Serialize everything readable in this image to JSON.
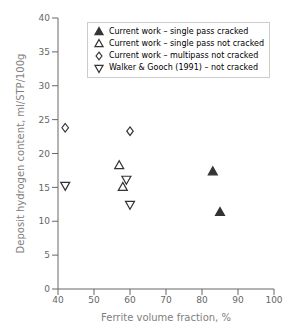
{
  "chart_data": {
    "type": "scatter",
    "xlabel": "Ferrite volume fraction, %",
    "ylabel": "Deposit hydrogen content, ml/STP/100g",
    "xlim": [
      40,
      100
    ],
    "ylim": [
      0,
      40
    ],
    "xticks": [
      40,
      50,
      60,
      70,
      80,
      90,
      100
    ],
    "yticks": [
      0,
      5,
      10,
      15,
      20,
      25,
      30,
      35,
      40
    ],
    "grid": false,
    "legend": "upper right",
    "series": [
      {
        "name": "Current work – single pass cracked",
        "color": "#333333",
        "marker": "triangle_up_filled",
        "x": [
          83,
          85
        ],
        "values": [
          17.3,
          11.3
        ]
      },
      {
        "name": "Current work – single pass not cracked",
        "color": "#333333",
        "marker": "triangle_up_open",
        "x": [
          57,
          58
        ],
        "values": [
          18.2,
          15.0
        ]
      },
      {
        "name": "Current work – multipass not cracked",
        "color": "#333333",
        "marker": "diamond_open",
        "x": [
          42,
          60
        ],
        "values": [
          23.8,
          23.3
        ]
      },
      {
        "name": "Walker & Gooch (1991) – not cracked",
        "color": "#333333",
        "marker": "triangle_down_open",
        "x": [
          42,
          59,
          60
        ],
        "values": [
          15.3,
          16.2,
          12.5
        ]
      }
    ]
  }
}
